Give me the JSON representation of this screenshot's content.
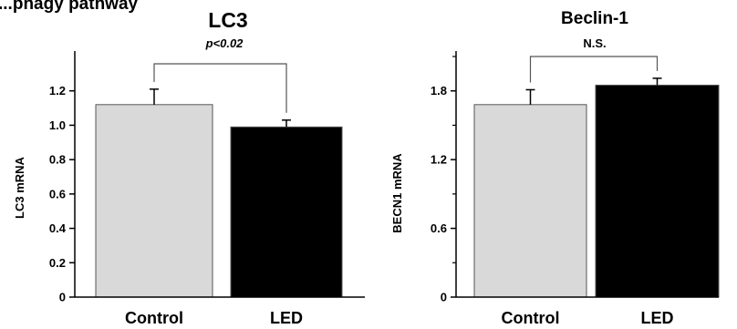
{
  "header_fragment": "...phagy pathway",
  "chart_data": [
    {
      "type": "bar",
      "title": "LC3",
      "ylabel": "LC3  mRNA",
      "xlabel": "",
      "categories": [
        "Control",
        "LED"
      ],
      "values": [
        1.12,
        0.99
      ],
      "errors": [
        0.09,
        0.04
      ],
      "ylim": [
        0,
        1.4
      ],
      "yticks": [
        0,
        0.2,
        0.4,
        0.6,
        0.8,
        1.0,
        1.2
      ],
      "ytick_labels": [
        "0",
        "0.2",
        "0.4",
        "0.6",
        "0.8",
        "1.0",
        "1.2"
      ],
      "bar_colors": [
        "#d9d9d9",
        "#000000"
      ],
      "significance": {
        "label": "p<0.02",
        "italic": true,
        "bracket_y": 1.3
      },
      "grid": false,
      "legend": "none"
    },
    {
      "type": "bar",
      "title": "Beclin-1",
      "ylabel": "BECN1 mRNA",
      "xlabel": "",
      "categories": [
        "Control",
        "LED"
      ],
      "values": [
        1.68,
        1.85
      ],
      "errors": [
        0.13,
        0.06
      ],
      "ylim": [
        0,
        2.1
      ],
      "yticks": [
        0,
        0.6,
        1.2,
        1.8
      ],
      "minor_yticks": [
        0.3,
        0.9,
        1.5,
        2.1
      ],
      "ytick_labels": [
        "0",
        "0.6",
        "1.2",
        "1.8"
      ],
      "bar_colors": [
        "#d9d9d9",
        "#000000"
      ],
      "significance": {
        "label": "N.S.",
        "italic": false,
        "bracket_y": 1.98
      },
      "grid": false,
      "legend": "none"
    }
  ]
}
